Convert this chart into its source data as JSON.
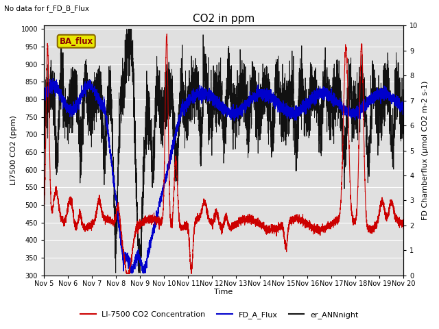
{
  "title": "CO2 in ppm",
  "top_left_text": "No data for f_FD_B_Flux",
  "legend_box_text": "BA_flux",
  "xlabel": "Time",
  "ylabel_left": "LI7500 CO2 (ppm)",
  "ylabel_right": "FD Chamberflux (μmol CO2 m-2 s-1)",
  "ylim_left": [
    300,
    1010
  ],
  "ylim_right": [
    0.0,
    10.0
  ],
  "xlim": [
    5,
    20
  ],
  "xtick_labels": [
    "Nov 5",
    "Nov 6",
    "Nov 7",
    "Nov 8",
    "Nov 9",
    "Nov 10",
    "Nov 11",
    "Nov 12",
    "Nov 13",
    "Nov 14",
    "Nov 15",
    "Nov 16",
    "Nov 17",
    "Nov 18",
    "Nov 19",
    "Nov 20"
  ],
  "xtick_positions": [
    5,
    6,
    7,
    8,
    9,
    10,
    11,
    12,
    13,
    14,
    15,
    16,
    17,
    18,
    19,
    20
  ],
  "yticks_left": [
    300,
    350,
    400,
    450,
    500,
    550,
    600,
    650,
    700,
    750,
    800,
    850,
    900,
    950,
    1000
  ],
  "yticks_right": [
    0.0,
    1.0,
    2.0,
    3.0,
    4.0,
    5.0,
    6.0,
    7.0,
    8.0,
    9.0,
    10.0
  ],
  "color_red": "#cc0000",
  "color_blue": "#0000cc",
  "color_black": "#111111",
  "color_bg": "#e0e0e0",
  "legend_box_facecolor": "#e8e800",
  "legend_box_edgecolor": "#886600",
  "legend_entries": [
    "LI-7500 CO2 Concentration",
    "FD_A_Flux",
    "er_ANNnight"
  ]
}
